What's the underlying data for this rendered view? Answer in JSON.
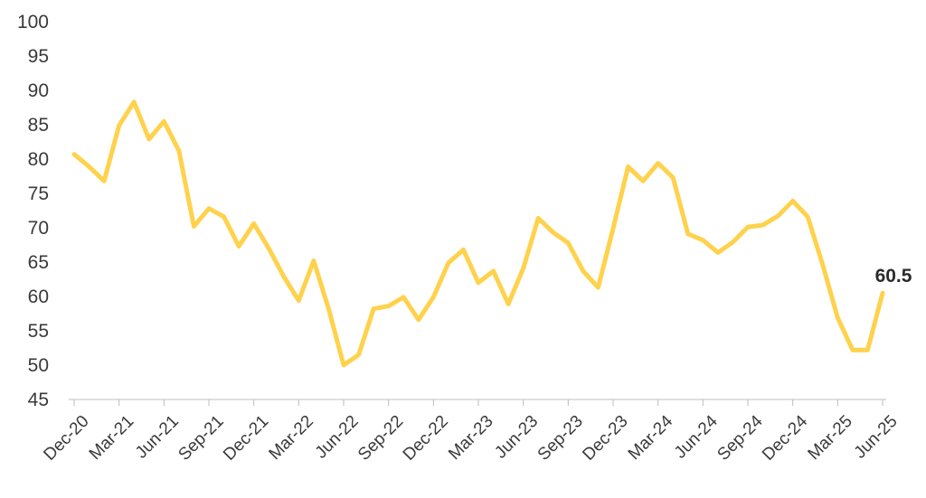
{
  "chart_data": {
    "type": "line",
    "title": "",
    "xlabel": "",
    "ylabel": "",
    "ylim": [
      45,
      100
    ],
    "yticks": [
      45,
      50,
      55,
      60,
      65,
      70,
      75,
      80,
      85,
      90,
      95,
      100
    ],
    "grid": false,
    "legend": "none",
    "x": [
      "Dec-20",
      "Jan-21",
      "Feb-21",
      "Mar-21",
      "Apr-21",
      "May-21",
      "Jun-21",
      "Jul-21",
      "Aug-21",
      "Sep-21",
      "Oct-21",
      "Nov-21",
      "Dec-21",
      "Jan-22",
      "Feb-22",
      "Mar-22",
      "Apr-22",
      "May-22",
      "Jun-22",
      "Jul-22",
      "Aug-22",
      "Sep-22",
      "Oct-22",
      "Nov-22",
      "Dec-22",
      "Jan-23",
      "Feb-23",
      "Mar-23",
      "Apr-23",
      "May-23",
      "Jun-23",
      "Jul-23",
      "Aug-23",
      "Sep-23",
      "Oct-23",
      "Nov-23",
      "Dec-23",
      "Jan-24",
      "Feb-24",
      "Mar-24",
      "Apr-24",
      "May-24",
      "Jun-24",
      "Jul-24",
      "Aug-24",
      "Sep-24",
      "Oct-24",
      "Nov-24",
      "Dec-24",
      "Jan-25",
      "Feb-25",
      "Mar-25",
      "Apr-25",
      "May-25",
      "Jun-25"
    ],
    "xtick_labels": [
      "Dec-20",
      "Mar-21",
      "Jun-21",
      "Sep-21",
      "Dec-21",
      "Mar-22",
      "Jun-22",
      "Sep-22",
      "Dec-22",
      "Mar-23",
      "Jun-23",
      "Sep-23",
      "Dec-23",
      "Mar-24",
      "Jun-24",
      "Sep-24",
      "Dec-24",
      "Mar-25",
      "Jun-25"
    ],
    "series": [
      {
        "color": "#FFD24D",
        "values": [
          80.7,
          78.9,
          76.8,
          84.9,
          88.3,
          82.9,
          85.5,
          81.2,
          70.2,
          72.8,
          71.6,
          67.3,
          70.6,
          67.0,
          62.9,
          59.4,
          65.2,
          58.2,
          50.0,
          51.5,
          58.2,
          58.6,
          59.9,
          56.6,
          59.9,
          64.9,
          66.8,
          62.0,
          63.7,
          58.9,
          64.1,
          71.4,
          69.3,
          67.8,
          63.7,
          61.3,
          69.9,
          78.9,
          76.8,
          79.4,
          77.3,
          69.1,
          68.2,
          66.4,
          67.9,
          70.1,
          70.4,
          71.7,
          73.9,
          71.6,
          64.6,
          56.9,
          52.2,
          52.2,
          60.5
        ]
      }
    ],
    "annotation": {
      "text": "60.5",
      "at": "last-point"
    }
  }
}
